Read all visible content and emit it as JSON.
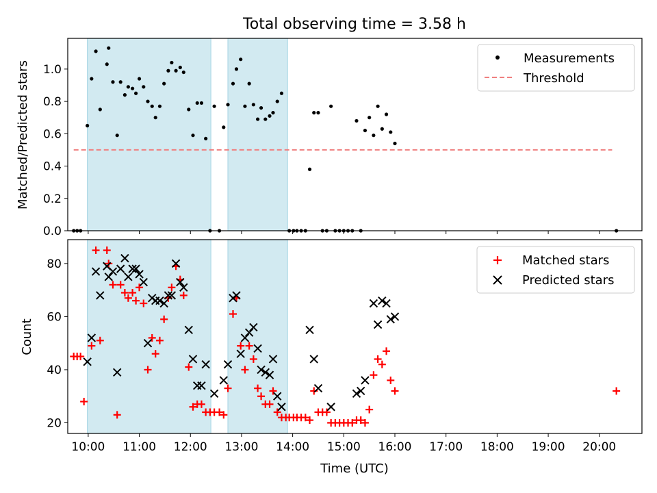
{
  "figure": {
    "title": "Total observing time = 3.58 h",
    "xlabel": "Time (UTC)",
    "colors": {
      "shade": "#add8e6",
      "threshold": "#f08080",
      "matched": "#ff0000",
      "predicted": "#000000",
      "measure": "#000000"
    }
  },
  "chart_data": [
    {
      "type": "scatter",
      "ylabel": "Matched/Predicted stars",
      "xlim": [
        "09:36",
        "20:50"
      ],
      "ylim": [
        0,
        1.19
      ],
      "x_ticks": [
        "10:00",
        "11:00",
        "12:00",
        "13:00",
        "14:00",
        "15:00",
        "16:00",
        "17:00",
        "18:00",
        "19:00",
        "20:00"
      ],
      "y_ticks": [
        "0.0",
        "0.2",
        "0.4",
        "0.6",
        "0.8",
        "1.0"
      ],
      "shaded_intervals": [
        [
          "09:59",
          "12:24"
        ],
        [
          "12:44",
          "13:54"
        ]
      ],
      "legend": {
        "position": "upper right",
        "entries": [
          "Measurements",
          "Threshold"
        ]
      },
      "series": [
        {
          "name": "Measurements",
          "marker": "dot",
          "points": [
            [
              "09:43",
              0
            ],
            [
              "09:47",
              0
            ],
            [
              "09:51",
              0
            ],
            [
              "09:59",
              0.65
            ],
            [
              "10:04",
              0.94
            ],
            [
              "10:09",
              1.11
            ],
            [
              "10:14",
              0.75
            ],
            [
              "10:22",
              1.03
            ],
            [
              "10:24",
              1.13
            ],
            [
              "10:29",
              0.92
            ],
            [
              "10:34",
              0.59
            ],
            [
              "10:38",
              0.92
            ],
            [
              "10:43",
              0.84
            ],
            [
              "10:47",
              0.89
            ],
            [
              "10:52",
              0.88
            ],
            [
              "10:56",
              0.85
            ],
            [
              "11:00",
              0.94
            ],
            [
              "11:05",
              0.89
            ],
            [
              "11:10",
              0.8
            ],
            [
              "11:15",
              0.77
            ],
            [
              "11:19",
              0.7
            ],
            [
              "11:24",
              0.77
            ],
            [
              "11:29",
              0.91
            ],
            [
              "11:34",
              0.99
            ],
            [
              "11:38",
              1.04
            ],
            [
              "11:43",
              0.99
            ],
            [
              "11:48",
              1.01
            ],
            [
              "11:52",
              0.98
            ],
            [
              "11:58",
              0.75
            ],
            [
              "12:03",
              0.59
            ],
            [
              "12:08",
              0.79
            ],
            [
              "12:13",
              0.79
            ],
            [
              "12:18",
              0.57
            ],
            [
              "12:23",
              0
            ],
            [
              "12:28",
              0.77
            ],
            [
              "12:34",
              0
            ],
            [
              "12:39",
              0.64
            ],
            [
              "12:44",
              0.78
            ],
            [
              "12:50",
              0.91
            ],
            [
              "12:54",
              1.0
            ],
            [
              "12:59",
              1.06
            ],
            [
              "13:04",
              0.77
            ],
            [
              "13:09",
              0.91
            ],
            [
              "13:14",
              0.78
            ],
            [
              "13:19",
              0.69
            ],
            [
              "13:23",
              0.76
            ],
            [
              "13:28",
              0.69
            ],
            [
              "13:33",
              0.71
            ],
            [
              "13:37",
              0.73
            ],
            [
              "13:42",
              0.8
            ],
            [
              "13:47",
              0.85
            ],
            [
              "13:56",
              0
            ],
            [
              "14:01",
              0
            ],
            [
              "14:05",
              0
            ],
            [
              "14:10",
              0
            ],
            [
              "14:15",
              0
            ],
            [
              "14:20",
              0.38
            ],
            [
              "14:25",
              0.73
            ],
            [
              "14:30",
              0.73
            ],
            [
              "14:35",
              0
            ],
            [
              "14:40",
              0
            ],
            [
              "14:45",
              0.77
            ],
            [
              "14:50",
              0
            ],
            [
              "14:55",
              0
            ],
            [
              "15:00",
              0
            ],
            [
              "15:05",
              0
            ],
            [
              "15:10",
              0
            ],
            [
              "15:15",
              0.68
            ],
            [
              "15:20",
              0
            ],
            [
              "15:25",
              0.62
            ],
            [
              "15:30",
              0.7
            ],
            [
              "15:35",
              0.59
            ],
            [
              "15:40",
              0.77
            ],
            [
              "15:45",
              0.63
            ],
            [
              "15:50",
              0.72
            ],
            [
              "15:55",
              0.61
            ],
            [
              "16:00",
              0.54
            ],
            [
              "20:20",
              0
            ]
          ]
        },
        {
          "name": "Threshold",
          "style": "dashed",
          "y": 0.5,
          "x_range": [
            "09:43",
            "20:15"
          ]
        }
      ]
    },
    {
      "type": "scatter",
      "ylabel": "Count",
      "xlim": [
        "09:36",
        "20:50"
      ],
      "ylim": [
        16,
        89
      ],
      "x_ticks": [
        "10:00",
        "11:00",
        "12:00",
        "13:00",
        "14:00",
        "15:00",
        "16:00",
        "17:00",
        "18:00",
        "19:00",
        "20:00"
      ],
      "x_tick_labels": [
        "10:00",
        "11:00",
        "12:00",
        "13:00",
        "14:00",
        "15:00",
        "16:00",
        "17:00",
        "18:00",
        "19:00",
        "20:00"
      ],
      "y_ticks": [
        "20",
        "40",
        "60",
        "80"
      ],
      "shaded_intervals": [
        [
          "09:59",
          "12:24"
        ],
        [
          "12:44",
          "13:54"
        ]
      ],
      "legend": {
        "position": "upper right",
        "entries": [
          "Matched stars",
          "Predicted stars"
        ]
      },
      "series": [
        {
          "name": "Matched stars",
          "marker": "plus",
          "points": [
            [
              "09:43",
              45
            ],
            [
              "09:47",
              45
            ],
            [
              "09:51",
              45
            ],
            [
              "09:55",
              28
            ],
            [
              "10:04",
              49
            ],
            [
              "10:09",
              85
            ],
            [
              "10:14",
              51
            ],
            [
              "10:22",
              85
            ],
            [
              "10:24",
              80
            ],
            [
              "10:29",
              72
            ],
            [
              "10:34",
              23
            ],
            [
              "10:38",
              72
            ],
            [
              "10:43",
              69
            ],
            [
              "10:47",
              67
            ],
            [
              "10:52",
              69
            ],
            [
              "10:56",
              66
            ],
            [
              "11:00",
              71
            ],
            [
              "11:05",
              65
            ],
            [
              "11:10",
              40
            ],
            [
              "11:15",
              52
            ],
            [
              "11:19",
              46
            ],
            [
              "11:24",
              51
            ],
            [
              "11:29",
              59
            ],
            [
              "11:34",
              67
            ],
            [
              "11:38",
              71
            ],
            [
              "11:43",
              79
            ],
            [
              "11:48",
              74
            ],
            [
              "11:52",
              68
            ],
            [
              "11:58",
              41
            ],
            [
              "12:03",
              26
            ],
            [
              "12:08",
              27
            ],
            [
              "12:13",
              27
            ],
            [
              "12:18",
              24
            ],
            [
              "12:23",
              24
            ],
            [
              "12:28",
              24
            ],
            [
              "12:34",
              24
            ],
            [
              "12:39",
              23
            ],
            [
              "12:44",
              33
            ],
            [
              "12:50",
              61
            ],
            [
              "12:54",
              67
            ],
            [
              "12:59",
              49
            ],
            [
              "13:04",
              40
            ],
            [
              "13:09",
              49
            ],
            [
              "13:14",
              44
            ],
            [
              "13:19",
              33
            ],
            [
              "13:23",
              30
            ],
            [
              "13:28",
              27
            ],
            [
              "13:33",
              27
            ],
            [
              "13:37",
              32
            ],
            [
              "13:42",
              24
            ],
            [
              "13:47",
              22
            ],
            [
              "13:52",
              22
            ],
            [
              "13:56",
              22
            ],
            [
              "14:01",
              22
            ],
            [
              "14:05",
              22
            ],
            [
              "14:10",
              22
            ],
            [
              "14:15",
              22
            ],
            [
              "14:20",
              21
            ],
            [
              "14:25",
              32
            ],
            [
              "14:30",
              24
            ],
            [
              "14:35",
              24
            ],
            [
              "14:40",
              24
            ],
            [
              "14:45",
              20
            ],
            [
              "14:50",
              20
            ],
            [
              "14:55",
              20
            ],
            [
              "15:00",
              20
            ],
            [
              "15:05",
              20
            ],
            [
              "15:10",
              20
            ],
            [
              "15:15",
              21
            ],
            [
              "15:20",
              21
            ],
            [
              "15:25",
              20
            ],
            [
              "15:30",
              25
            ],
            [
              "15:35",
              38
            ],
            [
              "15:40",
              44
            ],
            [
              "15:45",
              42
            ],
            [
              "15:50",
              47
            ],
            [
              "15:55",
              36
            ],
            [
              "16:00",
              32
            ],
            [
              "20:20",
              32
            ]
          ]
        },
        {
          "name": "Predicted stars",
          "marker": "x",
          "points": [
            [
              "09:59",
              43
            ],
            [
              "10:04",
              52
            ],
            [
              "10:09",
              77
            ],
            [
              "10:14",
              68
            ],
            [
              "10:22",
              79
            ],
            [
              "10:24",
              75
            ],
            [
              "10:29",
              77
            ],
            [
              "10:34",
              39
            ],
            [
              "10:38",
              78
            ],
            [
              "10:43",
              82
            ],
            [
              "10:47",
              75
            ],
            [
              "10:52",
              78
            ],
            [
              "10:56",
              78
            ],
            [
              "11:00",
              76
            ],
            [
              "11:05",
              73
            ],
            [
              "11:10",
              50
            ],
            [
              "11:15",
              67
            ],
            [
              "11:19",
              66
            ],
            [
              "11:24",
              66
            ],
            [
              "11:29",
              65
            ],
            [
              "11:34",
              68
            ],
            [
              "11:38",
              68
            ],
            [
              "11:43",
              80
            ],
            [
              "11:48",
              73
            ],
            [
              "11:52",
              71
            ],
            [
              "11:58",
              55
            ],
            [
              "12:03",
              44
            ],
            [
              "12:08",
              34
            ],
            [
              "12:13",
              34
            ],
            [
              "12:18",
              42
            ],
            [
              "12:28",
              31
            ],
            [
              "12:39",
              36
            ],
            [
              "12:44",
              42
            ],
            [
              "12:50",
              67
            ],
            [
              "12:54",
              68
            ],
            [
              "12:59",
              46
            ],
            [
              "13:04",
              52
            ],
            [
              "13:09",
              54
            ],
            [
              "13:14",
              56
            ],
            [
              "13:19",
              48
            ],
            [
              "13:23",
              40
            ],
            [
              "13:28",
              39
            ],
            [
              "13:33",
              38
            ],
            [
              "13:37",
              44
            ],
            [
              "13:42",
              30
            ],
            [
              "13:47",
              26
            ],
            [
              "14:20",
              55
            ],
            [
              "14:25",
              44
            ],
            [
              "14:30",
              33
            ],
            [
              "14:45",
              26
            ],
            [
              "15:15",
              31
            ],
            [
              "15:20",
              32
            ],
            [
              "15:25",
              36
            ],
            [
              "15:35",
              65
            ],
            [
              "15:40",
              57
            ],
            [
              "15:45",
              66
            ],
            [
              "15:50",
              65
            ],
            [
              "15:55",
              59
            ],
            [
              "16:00",
              60
            ]
          ]
        }
      ]
    }
  ]
}
